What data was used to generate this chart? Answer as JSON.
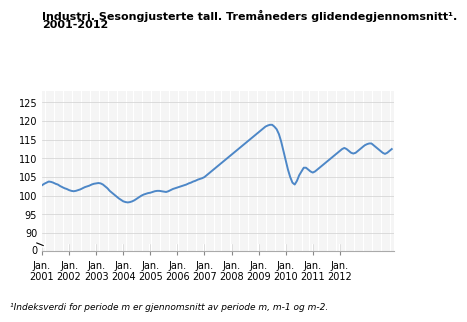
{
  "title_line1": "Industri. Sesongjusterte tall. Tremåneders glidendegjennomsnitt¹.",
  "title_line2": "2001-2012",
  "footnote": "¹Indeksverdi for periode m er gjennomsnitt av periode m, m-1 og m-2.",
  "yticks_upper": [
    90,
    95,
    100,
    105,
    110,
    115,
    120,
    125
  ],
  "ytick_zero": 0,
  "ylim_upper": [
    87,
    128
  ],
  "ylim_lower": [
    -0.5,
    2
  ],
  "xtick_years": [
    2001,
    2002,
    2003,
    2004,
    2005,
    2006,
    2007,
    2008,
    2009,
    2010,
    2011,
    2012
  ],
  "line_color": "#4d87c7",
  "line_width": 1.4,
  "background_color": "#ffffff",
  "grid_color": "#d0d0d0",
  "title_fontsize": 8.0,
  "footnote_fontsize": 6.5,
  "tick_fontsize": 7.0,
  "series": [
    102.8,
    103.2,
    103.5,
    103.8,
    103.7,
    103.5,
    103.2,
    103.0,
    102.6,
    102.3,
    102.0,
    101.8,
    101.5,
    101.3,
    101.2,
    101.3,
    101.5,
    101.7,
    102.0,
    102.3,
    102.5,
    102.7,
    103.0,
    103.2,
    103.3,
    103.4,
    103.3,
    103.0,
    102.5,
    102.0,
    101.3,
    100.8,
    100.3,
    99.8,
    99.3,
    98.9,
    98.5,
    98.3,
    98.2,
    98.3,
    98.5,
    98.8,
    99.2,
    99.6,
    100.0,
    100.3,
    100.5,
    100.7,
    100.8,
    101.0,
    101.2,
    101.3,
    101.3,
    101.2,
    101.1,
    101.0,
    101.2,
    101.5,
    101.8,
    102.0,
    102.2,
    102.4,
    102.6,
    102.8,
    103.0,
    103.3,
    103.5,
    103.8,
    104.0,
    104.3,
    104.5,
    104.7,
    105.0,
    105.5,
    106.0,
    106.5,
    107.0,
    107.5,
    108.0,
    108.5,
    109.0,
    109.5,
    110.0,
    110.5,
    111.0,
    111.5,
    112.0,
    112.5,
    113.0,
    113.5,
    114.0,
    114.5,
    115.0,
    115.5,
    116.0,
    116.5,
    117.0,
    117.5,
    118.0,
    118.5,
    118.8,
    119.0,
    119.0,
    118.5,
    117.8,
    116.5,
    114.5,
    112.0,
    109.5,
    107.0,
    105.0,
    103.5,
    103.0,
    104.0,
    105.5,
    106.5,
    107.5,
    107.5,
    107.0,
    106.5,
    106.2,
    106.5,
    107.0,
    107.5,
    108.0,
    108.5,
    109.0,
    109.5,
    110.0,
    110.5,
    111.0,
    111.5,
    112.0,
    112.5,
    112.8,
    112.5,
    112.0,
    111.5,
    111.3,
    111.5,
    112.0,
    112.5,
    113.0,
    113.5,
    113.8,
    114.0,
    114.0,
    113.5,
    113.0,
    112.5,
    112.0,
    111.5,
    111.2,
    111.5,
    112.0,
    112.5
  ]
}
